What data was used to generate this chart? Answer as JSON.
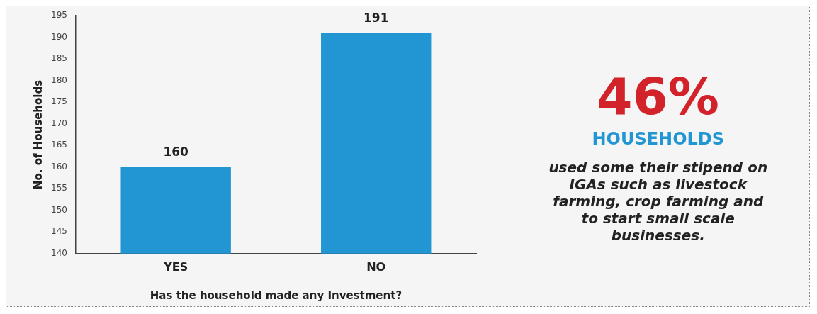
{
  "chart_data": [
    {
      "type": "bar",
      "xlabel": "Has the household made any Investment?",
      "ylabel": "No. of Households",
      "categories": [
        "YES",
        "NO"
      ],
      "values": [
        160,
        191
      ],
      "color": "#2196d3",
      "ylim": [
        140,
        195
      ],
      "yticks": [
        140,
        145,
        150,
        155,
        160,
        165,
        170,
        175,
        180,
        185,
        190,
        195
      ],
      "grid": false,
      "legend": false,
      "data_labels": true
    },
    {
      "type": "other",
      "title": "46%",
      "subtitle": "HOUSEHOLDS",
      "annotations": [
        "used some their stipend on IGAs such as livestock farming, crop farming and to start small scale businesses."
      ]
    }
  ]
}
